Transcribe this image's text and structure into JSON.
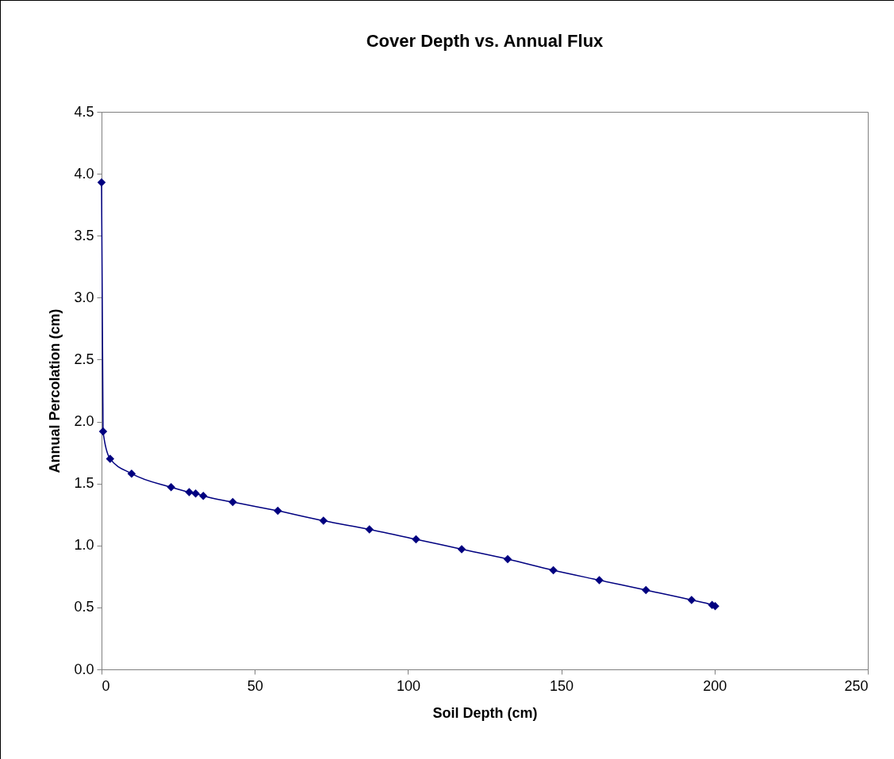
{
  "chart_data": {
    "type": "line",
    "title": "Cover Depth vs. Annual Flux",
    "xlabel": "Soil Depth (cm)",
    "ylabel": "Annual Percolation (cm)",
    "x": [
      0,
      0.5,
      2.8,
      9.8,
      22.7,
      28.6,
      30.7,
      33.2,
      42.8,
      57.5,
      72.4,
      87.4,
      102.6,
      117.5,
      132.5,
      147.4,
      162.4,
      177.6,
      192.5,
      199.2,
      200.2
    ],
    "series": [
      {
        "color": "#000080",
        "values": [
          3.93,
          1.92,
          1.7,
          1.58,
          1.47,
          1.43,
          1.42,
          1.4,
          1.35,
          1.28,
          1.2,
          1.13,
          1.05,
          0.97,
          0.89,
          0.8,
          0.72,
          0.64,
          0.56,
          0.52,
          0.51
        ]
      }
    ],
    "xlim": [
      0,
      250
    ],
    "xticks": [
      0,
      50,
      100,
      150,
      200,
      250
    ],
    "ylim": [
      0,
      4.5
    ],
    "yticks": [
      {
        "value": 0,
        "label": "0.0"
      },
      0.5,
      {
        "value": 1,
        "label": "1.0"
      },
      1.5,
      {
        "value": 2,
        "label": "2.0"
      },
      2.5,
      {
        "value": 3,
        "label": "3.0"
      },
      3.5,
      {
        "value": 4,
        "label": "4.0"
      },
      4.5
    ],
    "marker": "diamond",
    "line_style": "solid",
    "grid": false
  }
}
